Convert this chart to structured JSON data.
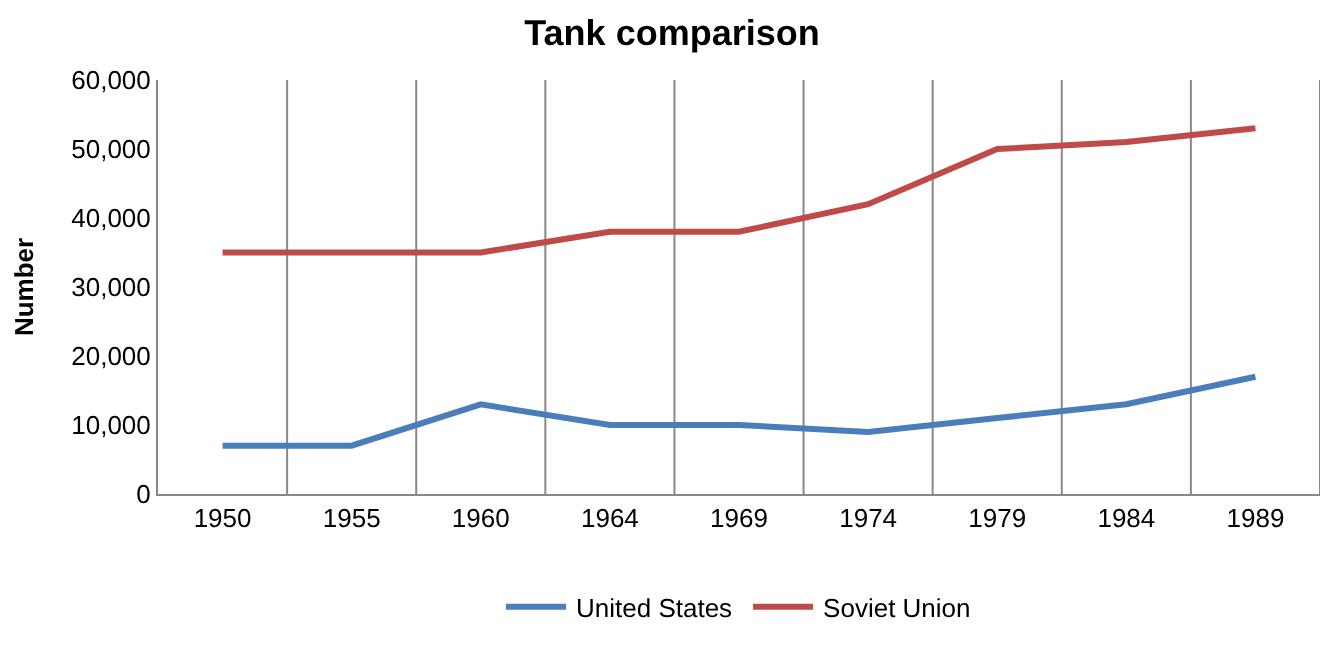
{
  "chart_data": {
    "type": "line",
    "title": "Tank comparison",
    "ylabel": "Number",
    "categories": [
      "1950",
      "1955",
      "1960",
      "1964",
      "1969",
      "1974",
      "1979",
      "1984",
      "1989"
    ],
    "series": [
      {
        "name": "United States",
        "color": "#4a7ebb",
        "values": [
          7000,
          7000,
          13000,
          10000,
          10000,
          9000,
          11000,
          13000,
          17000
        ]
      },
      {
        "name": "Soviet Union",
        "color": "#be4b48",
        "values": [
          35000,
          35000,
          35000,
          38000,
          38000,
          42000,
          50000,
          51000,
          53000
        ]
      }
    ],
    "ylim": [
      0,
      60000
    ],
    "yticks": [
      {
        "value": 0,
        "label": "0"
      },
      {
        "value": 10000,
        "label": "10,000"
      },
      {
        "value": 20000,
        "label": "20,000"
      },
      {
        "value": 30000,
        "label": "30,000"
      },
      {
        "value": 40000,
        "label": "40,000"
      },
      {
        "value": 50000,
        "label": "50,000"
      },
      {
        "value": 60000,
        "label": "60,000"
      }
    ],
    "grid": "x",
    "legend": "bottom",
    "marker": "none",
    "line_style": "solid"
  }
}
